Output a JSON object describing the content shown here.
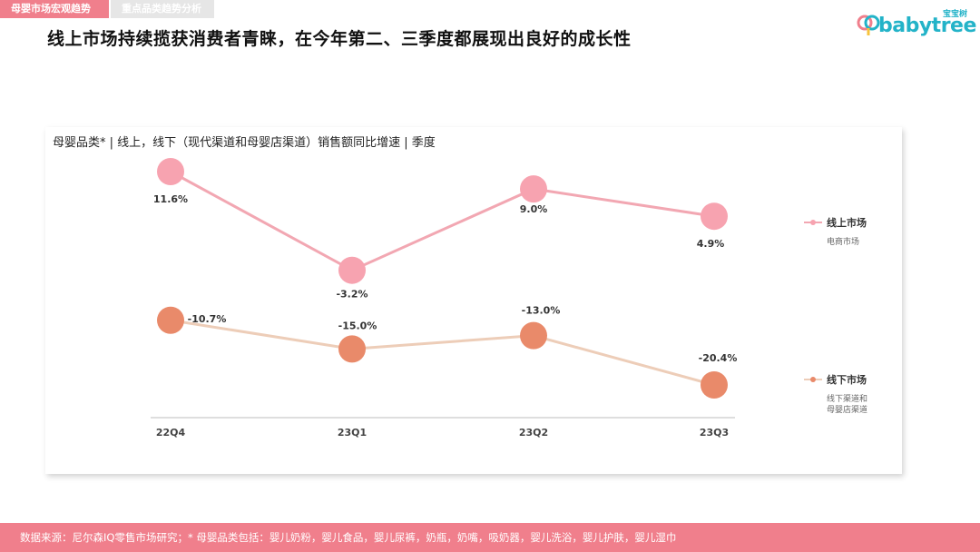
{
  "tabs": [
    {
      "label": "母婴市场宏观趋势"
    },
    {
      "label": "重点品类趋势分析"
    }
  ],
  "brand": {
    "cn": "宝宝树",
    "wordmark": "babytree"
  },
  "headline": "线上市场持续揽获消费者青睐，在今年第二、三季度都展现出良好的成长性",
  "footer": {
    "text": "数据来源：尼尔森IQ零售市场研究；* 母婴品类包括：婴儿奶粉，婴儿食品，婴儿尿裤，奶瓶，奶嘴，吸奶器，婴儿洗浴，婴儿护肤，婴儿湿巾"
  },
  "colors": {
    "accent": "#f07f8c",
    "online_line": "#f2a7b2",
    "online_dot": "#f7a3b0",
    "offline_line": "#edcdb8",
    "offline_dot": "#e98a6a"
  },
  "chart_data": {
    "type": "line",
    "title": "母婴品类* | 线上，线下（现代渠道和母婴店渠道）销售额同比增速 | 季度",
    "categories": [
      "22Q4",
      "23Q1",
      "23Q2",
      "23Q3"
    ],
    "series": [
      {
        "name": "线上市场",
        "note": "电商市场",
        "values": [
          11.6,
          -3.2,
          9.0,
          4.9
        ],
        "labels": [
          "11.6%",
          "-3.2%",
          "9.0%",
          "4.9%"
        ]
      },
      {
        "name": "线下市场",
        "note": "线下渠道和\n母婴店渠道",
        "values": [
          -10.7,
          -15.0,
          -13.0,
          -20.4
        ],
        "labels": [
          "-10.7%",
          "-15.0%",
          "-13.0%",
          "-20.4%"
        ]
      }
    ],
    "legend": "right"
  }
}
